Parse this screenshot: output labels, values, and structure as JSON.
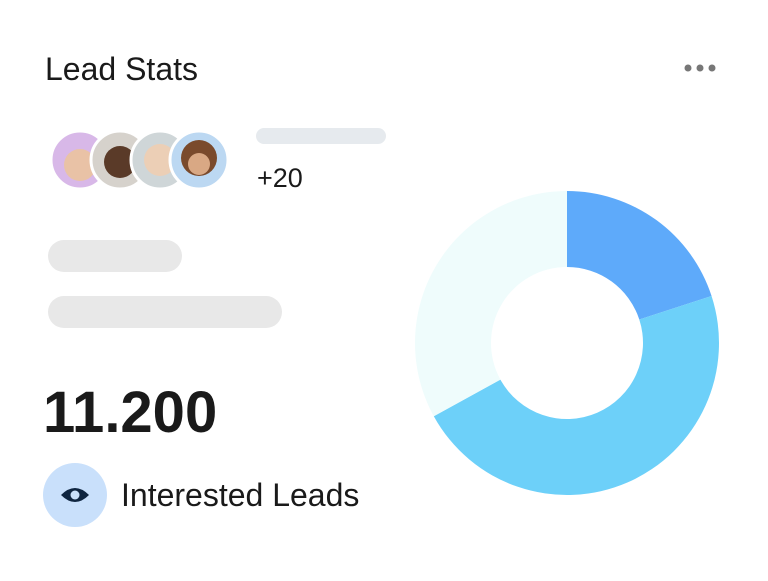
{
  "header": {
    "title": "Lead Stats"
  },
  "avatars": {
    "extra": "+20"
  },
  "stat": {
    "value": "11.200",
    "label": "Interested Leads"
  },
  "chart_data": {
    "type": "donut",
    "values": [
      20,
      47,
      33
    ],
    "colors": [
      "#5eaafa",
      "#6dd0f9",
      "#effcfc"
    ]
  }
}
